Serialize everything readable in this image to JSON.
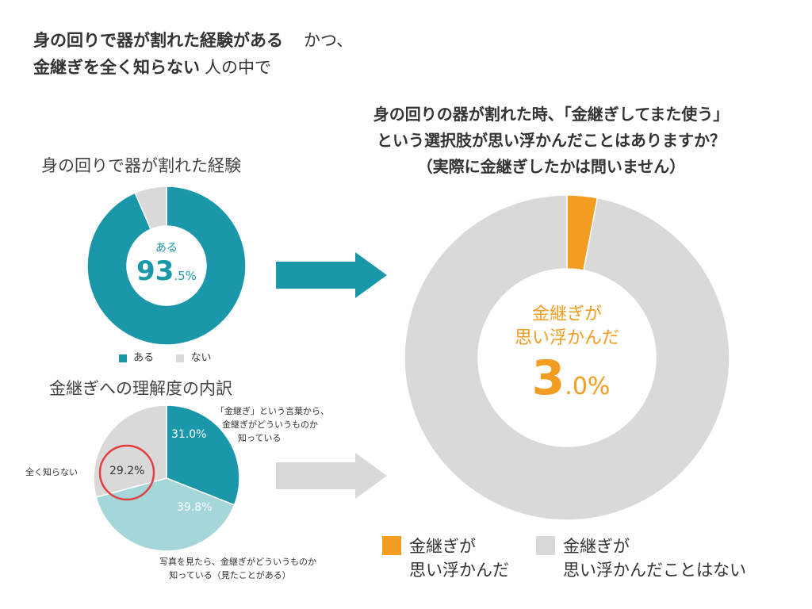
{
  "header": {
    "line1_bold": "身の回りで器が割れた経験がある",
    "line1_rest": "かつ、",
    "line2_bold": "金継ぎを全く知らない",
    "line2_rest": "人の中で"
  },
  "colors": {
    "teal": "#1a97a8",
    "light_teal": "#a5d7da",
    "gray": "#d9d9d9",
    "orange": "#f29c21",
    "red_ring": "#e04040"
  },
  "chart_data": [
    {
      "type": "pie",
      "style": "donut",
      "title": "身の回りで器が割れた経験",
      "categories": [
        "ある",
        "ない"
      ],
      "values": [
        93.5,
        6.5
      ],
      "center_label": "ある",
      "center_value_main": "93",
      "center_value_rest": ".5%",
      "legend": [
        "ある",
        "ない"
      ],
      "legend_position": "bottom"
    },
    {
      "type": "pie",
      "title": "金継ぎへの理解度の内訳",
      "categories": [
        "「金継ぎ」という言葉から、金継ぎがどういうものか知っている",
        "写真を見たら、金継ぎがどういうものか知っている（見たことがある）",
        "全く知らない"
      ],
      "values": [
        31.0,
        39.8,
        29.2
      ],
      "value_labels": [
        "31.0%",
        "39.8%",
        "29.2%"
      ],
      "annotations": [
        [
          "「金継ぎ」という言葉から、",
          "金継ぎがどういうものか",
          "知っている"
        ],
        [
          "写真を見たら、金継ぎがどういうものか",
          "知っている（見たことがある）"
        ],
        [
          "全く知らない"
        ]
      ],
      "highlight": "全く知らない"
    },
    {
      "type": "pie",
      "style": "donut",
      "title_lines": [
        "身の回りの器が割れた時、「金継ぎしてまた使う」",
        "という選択肢が思い浮かんだことはありますか？",
        "（実際に金継ぎしたかは問いません）"
      ],
      "categories": [
        "金継ぎが思い浮かんだ",
        "金継ぎが思い浮かんだことはない"
      ],
      "values": [
        3.0,
        97.0
      ],
      "center_label_lines": [
        "金継ぎが",
        "思い浮かんだ"
      ],
      "center_value_main": "3",
      "center_value_rest": ".0%",
      "legend": [
        [
          "金継ぎが",
          "思い浮かんだ"
        ],
        [
          "金継ぎが",
          "思い浮かんだことはない"
        ]
      ],
      "legend_position": "bottom"
    }
  ]
}
